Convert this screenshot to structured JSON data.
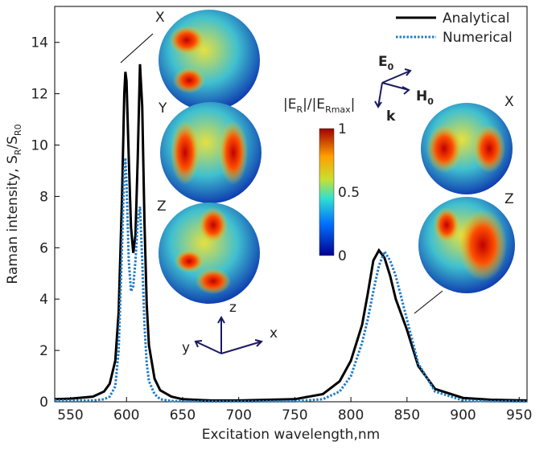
{
  "chart_data": {
    "type": "line",
    "xlabel": "Excitation wavelength,nm",
    "ylabel_parts": [
      "Raman intensity, S",
      "R",
      "/S",
      "R0"
    ],
    "x": [
      536,
      550,
      570,
      580,
      585,
      590,
      593,
      596,
      598,
      599,
      600,
      602,
      604,
      606,
      608,
      610,
      612,
      614,
      616,
      618,
      620,
      625,
      630,
      640,
      650,
      675,
      700,
      750,
      775,
      790,
      800,
      810,
      815,
      820,
      825,
      830,
      835,
      840,
      850,
      860,
      875,
      900,
      925,
      957
    ],
    "series": [
      {
        "name": "Analytical",
        "color": "#000000",
        "dash": "solid",
        "values": [
          0.1,
          0.12,
          0.2,
          0.4,
          0.7,
          1.6,
          3.5,
          8,
          12,
          12.85,
          12.5,
          9.5,
          6.8,
          5.8,
          6.5,
          9.5,
          13.15,
          11.5,
          7,
          3.8,
          2.2,
          0.9,
          0.45,
          0.2,
          0.1,
          0.05,
          0.05,
          0.1,
          0.3,
          0.8,
          1.6,
          3,
          4.2,
          5.5,
          5.9,
          5.6,
          4.9,
          4.0,
          2.8,
          1.4,
          0.5,
          0.15,
          0.08,
          0.05
        ]
      },
      {
        "name": "Numerical",
        "color": "#1f7bc4",
        "dash": "dotted",
        "values": [
          0.05,
          0.05,
          0.05,
          0.1,
          0.2,
          0.6,
          2,
          6,
          9,
          9.5,
          8.5,
          5.5,
          4.3,
          4.5,
          5.5,
          7,
          7.6,
          5.5,
          3,
          1.5,
          0.8,
          0.3,
          0.1,
          0.03,
          0.02,
          0.01,
          0.01,
          0.02,
          0.1,
          0.4,
          1,
          2.3,
          3.2,
          4.3,
          5.3,
          5.85,
          5.5,
          4.9,
          3.2,
          1.5,
          0.4,
          0.05,
          0.02,
          0.01
        ]
      }
    ],
    "xlim": [
      536,
      957
    ],
    "xticks": [
      550,
      600,
      650,
      700,
      750,
      800,
      850,
      900,
      950
    ],
    "ylim": [
      0,
      15.4
    ],
    "yticks": [
      0,
      2,
      4,
      6,
      8,
      10,
      12,
      14
    ],
    "legend": "top-right",
    "colorbar": {
      "label_parts": [
        "|E",
        "R",
        "|/|E",
        "Rmax",
        "|"
      ],
      "ticks": [
        1,
        0.5,
        0
      ]
    },
    "annotations": [
      "X",
      "Y",
      "Z",
      "X",
      "Z",
      "E",
      "0",
      "H",
      "0",
      "k",
      "z",
      "x",
      "y"
    ]
  }
}
